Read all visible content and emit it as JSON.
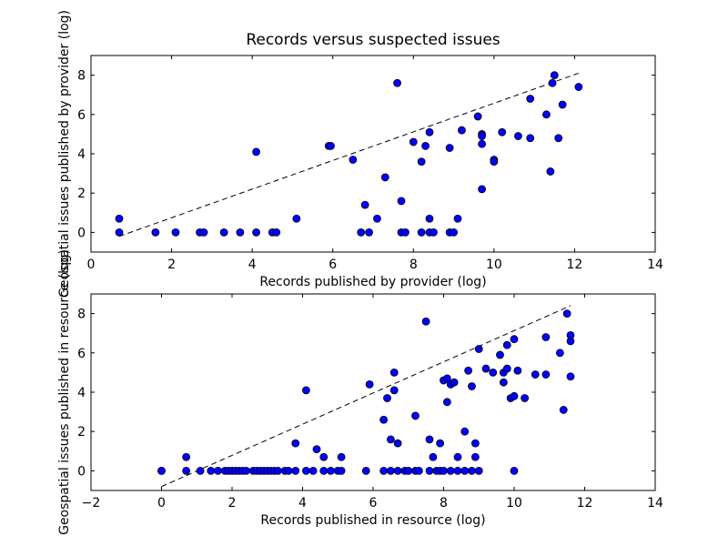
{
  "chart_data": [
    {
      "type": "scatter",
      "title": "Records versus suspected issues",
      "xlabel": "Records published by provider  (log)",
      "ylabel": "Geospatial issues published by provider (log)",
      "xlim": [
        0,
        14
      ],
      "ylim": [
        -1,
        9
      ],
      "xticks": [
        "0",
        "2",
        "4",
        "6",
        "8",
        "10",
        "12",
        "14"
      ],
      "yticks": [
        "0",
        "2",
        "4",
        "6",
        "8"
      ],
      "grid": false,
      "marker_color": "#0000ff",
      "trend_line": {
        "style": "dashed",
        "from": [
          0.7,
          -0.2
        ],
        "to": [
          12.1,
          8.1
        ]
      },
      "points": [
        [
          0.7,
          0.0
        ],
        [
          0.7,
          0.7
        ],
        [
          1.6,
          0.0
        ],
        [
          2.1,
          0.0
        ],
        [
          2.7,
          0.0
        ],
        [
          2.8,
          0.0
        ],
        [
          3.3,
          0.0
        ],
        [
          3.7,
          0.0
        ],
        [
          4.1,
          0.0
        ],
        [
          4.1,
          4.1
        ],
        [
          4.5,
          0.0
        ],
        [
          4.6,
          0.0
        ],
        [
          5.1,
          0.7
        ],
        [
          5.9,
          4.4
        ],
        [
          5.95,
          4.4
        ],
        [
          6.5,
          3.7
        ],
        [
          6.7,
          0.0
        ],
        [
          6.8,
          1.4
        ],
        [
          6.9,
          0.0
        ],
        [
          7.1,
          0.7
        ],
        [
          7.3,
          2.8
        ],
        [
          7.6,
          7.6
        ],
        [
          7.7,
          1.6
        ],
        [
          7.7,
          0.0
        ],
        [
          7.8,
          0.0
        ],
        [
          8.0,
          4.6
        ],
        [
          8.2,
          3.6
        ],
        [
          8.3,
          4.4
        ],
        [
          8.2,
          0.0
        ],
        [
          8.4,
          5.1
        ],
        [
          8.4,
          0.7
        ],
        [
          8.4,
          0.0
        ],
        [
          8.5,
          0.0
        ],
        [
          8.9,
          4.3
        ],
        [
          8.9,
          0.0
        ],
        [
          9.0,
          0.0
        ],
        [
          9.1,
          0.7
        ],
        [
          9.2,
          5.2
        ],
        [
          9.6,
          5.9
        ],
        [
          9.7,
          5.0
        ],
        [
          9.7,
          4.9
        ],
        [
          9.7,
          4.5
        ],
        [
          9.7,
          2.2
        ],
        [
          10.0,
          3.7
        ],
        [
          10.0,
          3.6
        ],
        [
          10.2,
          5.1
        ],
        [
          10.6,
          4.9
        ],
        [
          10.9,
          6.8
        ],
        [
          10.9,
          4.8
        ],
        [
          11.3,
          6.0
        ],
        [
          11.45,
          7.6
        ],
        [
          11.5,
          8.0
        ],
        [
          11.4,
          3.1
        ],
        [
          11.6,
          4.8
        ],
        [
          11.7,
          6.5
        ],
        [
          12.1,
          7.4
        ]
      ]
    },
    {
      "type": "scatter",
      "title": "",
      "xlabel": "Records published in resource  (log)",
      "ylabel": "Geospatial issues published in resource (log)",
      "xlim": [
        -2,
        14
      ],
      "ylim": [
        -1,
        9
      ],
      "xticks": [
        "−2",
        "0",
        "2",
        "4",
        "6",
        "8",
        "10",
        "12",
        "14"
      ],
      "yticks": [
        "0",
        "2",
        "4",
        "6",
        "8"
      ],
      "grid": false,
      "marker_color": "#0000ff",
      "trend_line": {
        "style": "dashed",
        "from": [
          0.0,
          -0.8
        ],
        "to": [
          11.6,
          8.4
        ]
      },
      "points": [
        [
          0.0,
          0.0
        ],
        [
          0.0,
          0.0
        ],
        [
          0.7,
          0.0
        ],
        [
          0.7,
          0.7
        ],
        [
          1.1,
          0.0
        ],
        [
          1.4,
          0.0
        ],
        [
          1.6,
          0.0
        ],
        [
          1.8,
          0.0
        ],
        [
          1.9,
          0.0
        ],
        [
          2.0,
          0.0
        ],
        [
          2.1,
          0.0
        ],
        [
          2.2,
          0.0
        ],
        [
          2.3,
          0.0
        ],
        [
          2.4,
          0.0
        ],
        [
          2.6,
          0.0
        ],
        [
          2.7,
          0.0
        ],
        [
          2.8,
          0.0
        ],
        [
          2.9,
          0.0
        ],
        [
          3.0,
          0.0
        ],
        [
          3.1,
          0.0
        ],
        [
          3.2,
          0.0
        ],
        [
          3.3,
          0.0
        ],
        [
          3.5,
          0.0
        ],
        [
          3.6,
          0.0
        ],
        [
          3.8,
          0.0
        ],
        [
          3.8,
          1.4
        ],
        [
          4.1,
          0.0
        ],
        [
          4.1,
          4.1
        ],
        [
          4.3,
          0.0
        ],
        [
          4.4,
          1.1
        ],
        [
          4.6,
          0.0
        ],
        [
          4.6,
          0.7
        ],
        [
          4.8,
          0.0
        ],
        [
          5.0,
          0.0
        ],
        [
          5.1,
          0.0
        ],
        [
          5.1,
          0.7
        ],
        [
          5.8,
          0.0
        ],
        [
          5.9,
          4.4
        ],
        [
          6.3,
          0.0
        ],
        [
          6.3,
          2.6
        ],
        [
          6.4,
          3.7
        ],
        [
          6.5,
          0.0
        ],
        [
          6.5,
          1.6
        ],
        [
          6.6,
          4.1
        ],
        [
          6.6,
          5.0
        ],
        [
          6.7,
          1.4
        ],
        [
          6.7,
          0.0
        ],
        [
          6.9,
          0.0
        ],
        [
          7.0,
          0.0
        ],
        [
          7.2,
          0.0
        ],
        [
          7.2,
          2.8
        ],
        [
          7.3,
          0.0
        ],
        [
          7.5,
          7.6
        ],
        [
          7.6,
          1.6
        ],
        [
          7.6,
          0.0
        ],
        [
          7.7,
          0.7
        ],
        [
          7.8,
          0.0
        ],
        [
          7.9,
          1.4
        ],
        [
          7.9,
          0.0
        ],
        [
          8.0,
          4.6
        ],
        [
          8.0,
          0.0
        ],
        [
          8.1,
          4.7
        ],
        [
          8.1,
          3.5
        ],
        [
          8.2,
          4.4
        ],
        [
          8.2,
          0.0
        ],
        [
          8.3,
          4.5
        ],
        [
          8.4,
          0.7
        ],
        [
          8.4,
          0.0
        ],
        [
          8.6,
          2.0
        ],
        [
          8.6,
          0.0
        ],
        [
          8.7,
          5.1
        ],
        [
          8.8,
          4.3
        ],
        [
          8.8,
          0.0
        ],
        [
          8.9,
          1.4
        ],
        [
          8.9,
          0.7
        ],
        [
          9.0,
          6.2
        ],
        [
          9.0,
          0.0
        ],
        [
          9.2,
          5.2
        ],
        [
          9.4,
          5.0
        ],
        [
          9.6,
          5.9
        ],
        [
          9.7,
          5.0
        ],
        [
          9.7,
          4.5
        ],
        [
          9.8,
          6.4
        ],
        [
          9.8,
          5.2
        ],
        [
          9.9,
          3.7
        ],
        [
          10.0,
          3.8
        ],
        [
          10.0,
          6.7
        ],
        [
          10.0,
          0.0
        ],
        [
          10.1,
          5.1
        ],
        [
          10.3,
          3.7
        ],
        [
          10.6,
          4.9
        ],
        [
          10.9,
          6.8
        ],
        [
          10.9,
          4.9
        ],
        [
          11.3,
          6.0
        ],
        [
          11.4,
          3.1
        ],
        [
          11.5,
          8.0
        ],
        [
          11.6,
          4.8
        ],
        [
          11.6,
          6.6
        ],
        [
          11.6,
          6.9
        ]
      ]
    }
  ]
}
